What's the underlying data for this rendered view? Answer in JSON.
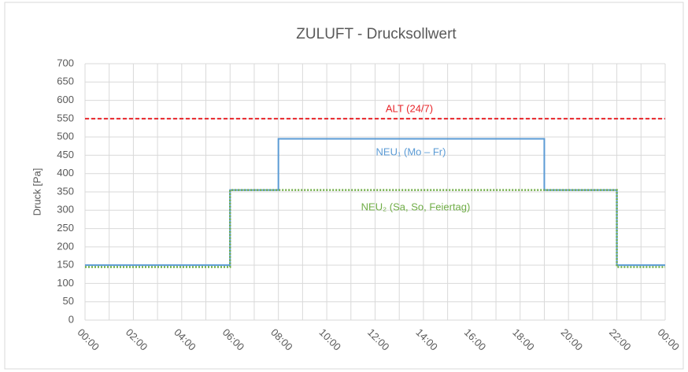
{
  "chart_data": {
    "type": "line",
    "title": "ZULUFT - Drucksollwert",
    "y_label": "Druck [Pa]",
    "xlim": [
      0,
      24
    ],
    "xticks": [
      {
        "value": 0,
        "label": "00:00"
      },
      {
        "value": 2,
        "label": "02:00"
      },
      {
        "value": 4,
        "label": "04:00"
      },
      {
        "value": 6,
        "label": "06:00"
      },
      {
        "value": 8,
        "label": "08:00"
      },
      {
        "value": 10,
        "label": "10:00"
      },
      {
        "value": 12,
        "label": "12:00"
      },
      {
        "value": 14,
        "label": "14:00"
      },
      {
        "value": 16,
        "label": "16:00"
      },
      {
        "value": 18,
        "label": "18:00"
      },
      {
        "value": 20,
        "label": "20:00"
      },
      {
        "value": 22,
        "label": "22:00"
      },
      {
        "value": 24,
        "label": "00:00"
      }
    ],
    "xminorticks": [
      1,
      3,
      5,
      7,
      9,
      11,
      13,
      15,
      17,
      19,
      21,
      23
    ],
    "ylim": [
      0,
      700
    ],
    "yticks": [
      0,
      50,
      100,
      150,
      200,
      250,
      300,
      350,
      400,
      450,
      500,
      550,
      600,
      650,
      700
    ],
    "grid": true,
    "series": [
      {
        "name": "ALT (24/7)",
        "color": "#e8262b",
        "dash": "dashed",
        "x": [
          0,
          24
        ],
        "values": [
          550,
          550
        ]
      },
      {
        "name": "NEU₁ (Mo – Fr)",
        "color": "#5b9bd5",
        "dash": "solid",
        "x": [
          0,
          6,
          6,
          8,
          8,
          19,
          19,
          22,
          22,
          24
        ],
        "values": [
          150,
          150,
          355,
          355,
          495,
          495,
          355,
          355,
          150,
          150
        ]
      },
      {
        "name": "NEU₂ (Sa, So, Feiertag)",
        "color": "#70ad47",
        "dash": "dotted",
        "x": [
          0,
          6,
          6,
          22,
          22,
          24
        ],
        "values": [
          145,
          145,
          355,
          355,
          145,
          145
        ]
      }
    ]
  }
}
